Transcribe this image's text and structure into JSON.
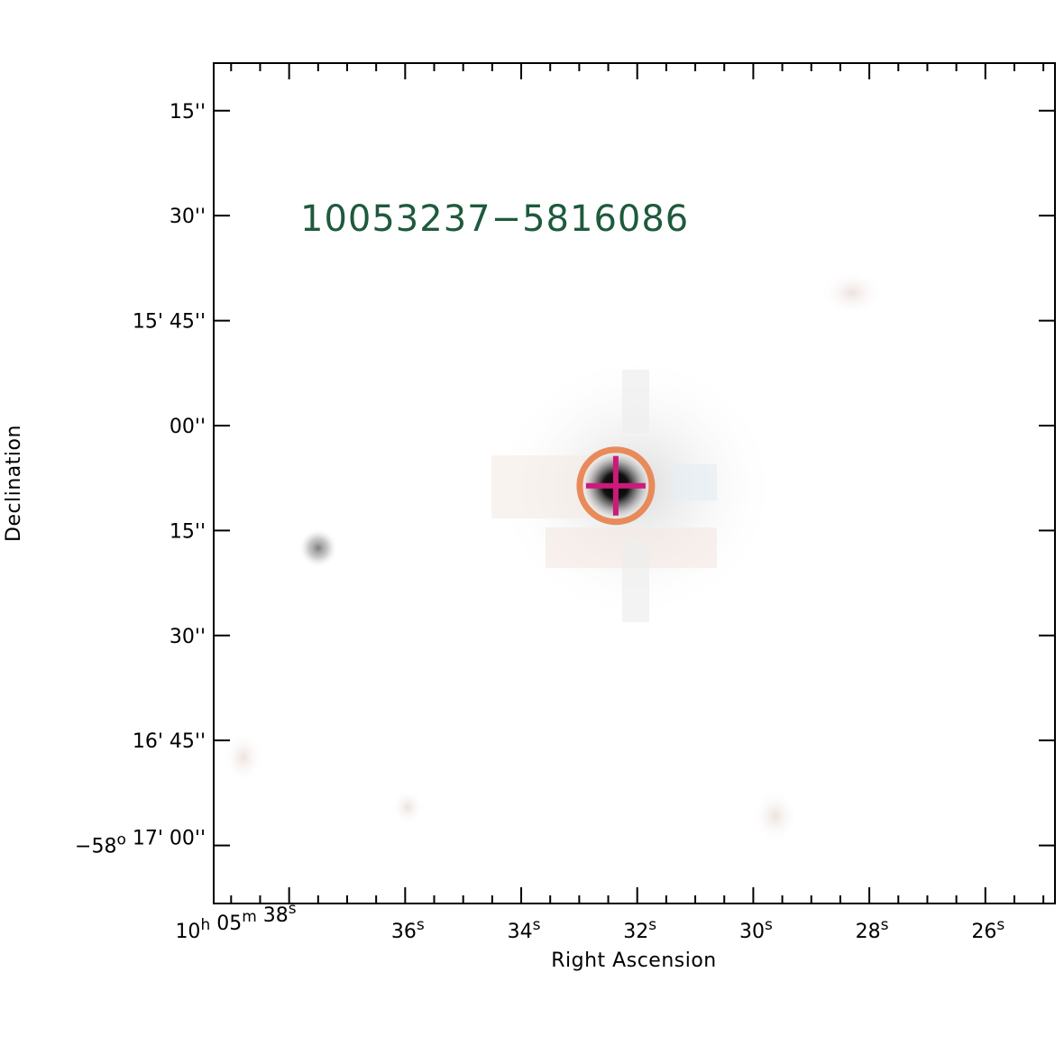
{
  "chart_data": {
    "type": "image",
    "title": "10053237−5816086",
    "xlabel": "Right Ascension",
    "ylabel": "Declination",
    "x_ticks": [
      {
        "ra_sec": 38,
        "parts": [
          [
            "10",
            ""
          ],
          [
            "h",
            "sup"
          ],
          [
            " 05",
            ""
          ],
          [
            "m",
            "sup"
          ],
          [
            " 38",
            ""
          ],
          [
            "s",
            "sup"
          ]
        ]
      },
      {
        "ra_sec": 36,
        "parts": [
          [
            "36",
            ""
          ],
          [
            "s",
            "sup"
          ]
        ]
      },
      {
        "ra_sec": 34,
        "parts": [
          [
            "34",
            ""
          ],
          [
            "s",
            "sup"
          ]
        ]
      },
      {
        "ra_sec": 32,
        "parts": [
          [
            "32",
            ""
          ],
          [
            "s",
            "sup"
          ]
        ]
      },
      {
        "ra_sec": 30,
        "parts": [
          [
            "30",
            ""
          ],
          [
            "s",
            "sup"
          ]
        ]
      },
      {
        "ra_sec": 28,
        "parts": [
          [
            "28",
            ""
          ],
          [
            "s",
            "sup"
          ]
        ]
      },
      {
        "ra_sec": 26,
        "parts": [
          [
            "26",
            ""
          ],
          [
            "s",
            "sup"
          ]
        ]
      }
    ],
    "y_ticks": [
      {
        "dec_arcsec_offset": -15,
        "parts": [
          [
            "15''",
            ""
          ]
        ]
      },
      {
        "dec_arcsec_offset": 0,
        "parts": [
          [
            "30''",
            ""
          ]
        ]
      },
      {
        "dec_arcsec_offset": 15,
        "parts": [
          [
            "15' 45''",
            ""
          ]
        ]
      },
      {
        "dec_arcsec_offset": 30,
        "parts": [
          [
            "00''",
            ""
          ]
        ]
      },
      {
        "dec_arcsec_offset": 45,
        "parts": [
          [
            "15''",
            ""
          ]
        ]
      },
      {
        "dec_arcsec_offset": 60,
        "parts": [
          [
            "30''",
            ""
          ]
        ]
      },
      {
        "dec_arcsec_offset": 75,
        "parts": [
          [
            "16' 45''",
            ""
          ]
        ]
      },
      {
        "dec_arcsec_offset": 90,
        "parts": [
          [
            "−58",
            ""
          ],
          [
            "o",
            "sup"
          ],
          [
            " 17' 00''",
            ""
          ]
        ]
      }
    ],
    "ra_range_sec": [
      39.3,
      24.8
    ],
    "dec_offset_range_arcsec": [
      -21.8,
      98.3
    ],
    "source": {
      "ra_sec": 32.37,
      "dec_arcsec_offset": 38.6
    },
    "secondary_source": {
      "ra_sec": 37.5,
      "dec_arcsec_offset": 47.5
    },
    "colors": {
      "title": "#1e5a3c",
      "circle": "#e88a5a",
      "cross": "#cc1a7a",
      "axes": "#000000"
    }
  }
}
